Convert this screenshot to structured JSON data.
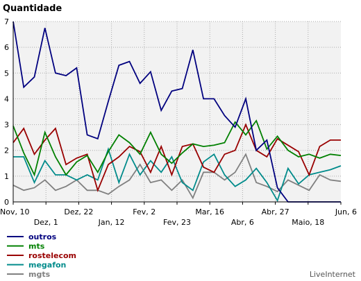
{
  "chart_data": {
    "type": "line",
    "title": "Quantidade",
    "ylim": [
      0,
      7
    ],
    "y_ticks": [
      "0",
      "1",
      "2",
      "3",
      "4",
      "5",
      "6",
      "7"
    ],
    "x_tick_labels_row1": [
      "Nov, 10",
      "Dez, 22",
      "Fev, 2",
      "Mar, 16",
      "Abr, 27",
      "Jun, 6"
    ],
    "x_tick_labels_row2": [
      "Dez, 1",
      "Jan, 12",
      "Fev, 23",
      "Abr, 6",
      "Maio, 18"
    ],
    "grid": true,
    "legend_position": "bottom-left",
    "series": [
      {
        "name": "outros",
        "color": "#00007f",
        "values": [
          7.0,
          4.45,
          4.85,
          6.75,
          5.0,
          4.9,
          5.2,
          2.6,
          2.45,
          3.9,
          5.3,
          5.45,
          4.6,
          5.05,
          3.55,
          4.3,
          4.4,
          5.9,
          4.0,
          4.0,
          3.35,
          2.9,
          4.0,
          2.0,
          2.4,
          0.55,
          0.0,
          0.0,
          0.0,
          0.0,
          0.0,
          0.0
        ]
      },
      {
        "name": "mts",
        "color": "#008000",
        "values": [
          2.95,
          1.9,
          1.05,
          2.7,
          1.75,
          1.05,
          1.55,
          1.8,
          1.15,
          1.95,
          2.6,
          2.3,
          1.85,
          2.7,
          1.85,
          1.5,
          1.9,
          2.25,
          2.15,
          2.2,
          2.3,
          3.1,
          2.6,
          3.15,
          2.05,
          2.55,
          2.0,
          1.75,
          1.85,
          1.7,
          1.85,
          1.8
        ]
      },
      {
        "name": "rostelecom",
        "color": "#990000",
        "values": [
          2.3,
          2.85,
          1.85,
          2.4,
          2.85,
          1.45,
          1.7,
          1.85,
          0.45,
          1.45,
          1.75,
          2.15,
          1.95,
          1.15,
          2.15,
          1.05,
          2.15,
          2.25,
          1.35,
          1.15,
          1.85,
          2.0,
          3.0,
          2.0,
          1.75,
          2.45,
          2.2,
          1.95,
          1.05,
          2.15,
          2.4,
          2.4
        ]
      },
      {
        "name": "megafon",
        "color": "#008b8b",
        "values": [
          1.75,
          1.75,
          0.75,
          1.6,
          1.05,
          1.05,
          0.85,
          1.05,
          0.85,
          2.05,
          0.75,
          1.85,
          1.05,
          1.6,
          1.15,
          1.75,
          0.75,
          0.45,
          1.55,
          1.85,
          1.05,
          0.6,
          0.85,
          1.3,
          0.75,
          0.05,
          1.3,
          0.7,
          1.05,
          1.15,
          1.25,
          1.4
        ]
      },
      {
        "name": "mgts",
        "color": "#808080",
        "values": [
          0.65,
          0.45,
          0.55,
          0.85,
          0.45,
          0.6,
          0.85,
          0.45,
          0.45,
          0.3,
          0.6,
          0.85,
          1.45,
          0.75,
          0.85,
          0.45,
          0.85,
          0.15,
          1.15,
          1.15,
          0.85,
          1.15,
          1.85,
          0.75,
          0.6,
          0.4,
          0.85,
          0.65,
          0.45,
          1.05,
          0.85,
          0.8
        ]
      }
    ]
  },
  "credit": "LiveInternet"
}
